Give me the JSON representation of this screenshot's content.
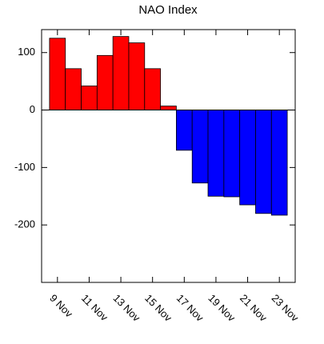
{
  "chart_data": {
    "type": "bar",
    "title": "NAO Index",
    "categories": [
      "9 Nov",
      null,
      "11 Nov",
      null,
      "13 Nov",
      null,
      "15 Nov",
      null,
      "17 Nov",
      null,
      "19 Nov",
      null,
      "21 Nov",
      null,
      "23 Nov"
    ],
    "values": [
      125,
      72,
      42,
      95,
      128,
      117,
      72,
      7,
      -70,
      -127,
      -150,
      -151,
      -165,
      -180,
      -183
    ],
    "positive_color": "#ff0000",
    "negative_color": "#0000ff",
    "ylim": [
      -300,
      140
    ],
    "yticks": [
      -200,
      -100,
      0,
      100
    ]
  }
}
